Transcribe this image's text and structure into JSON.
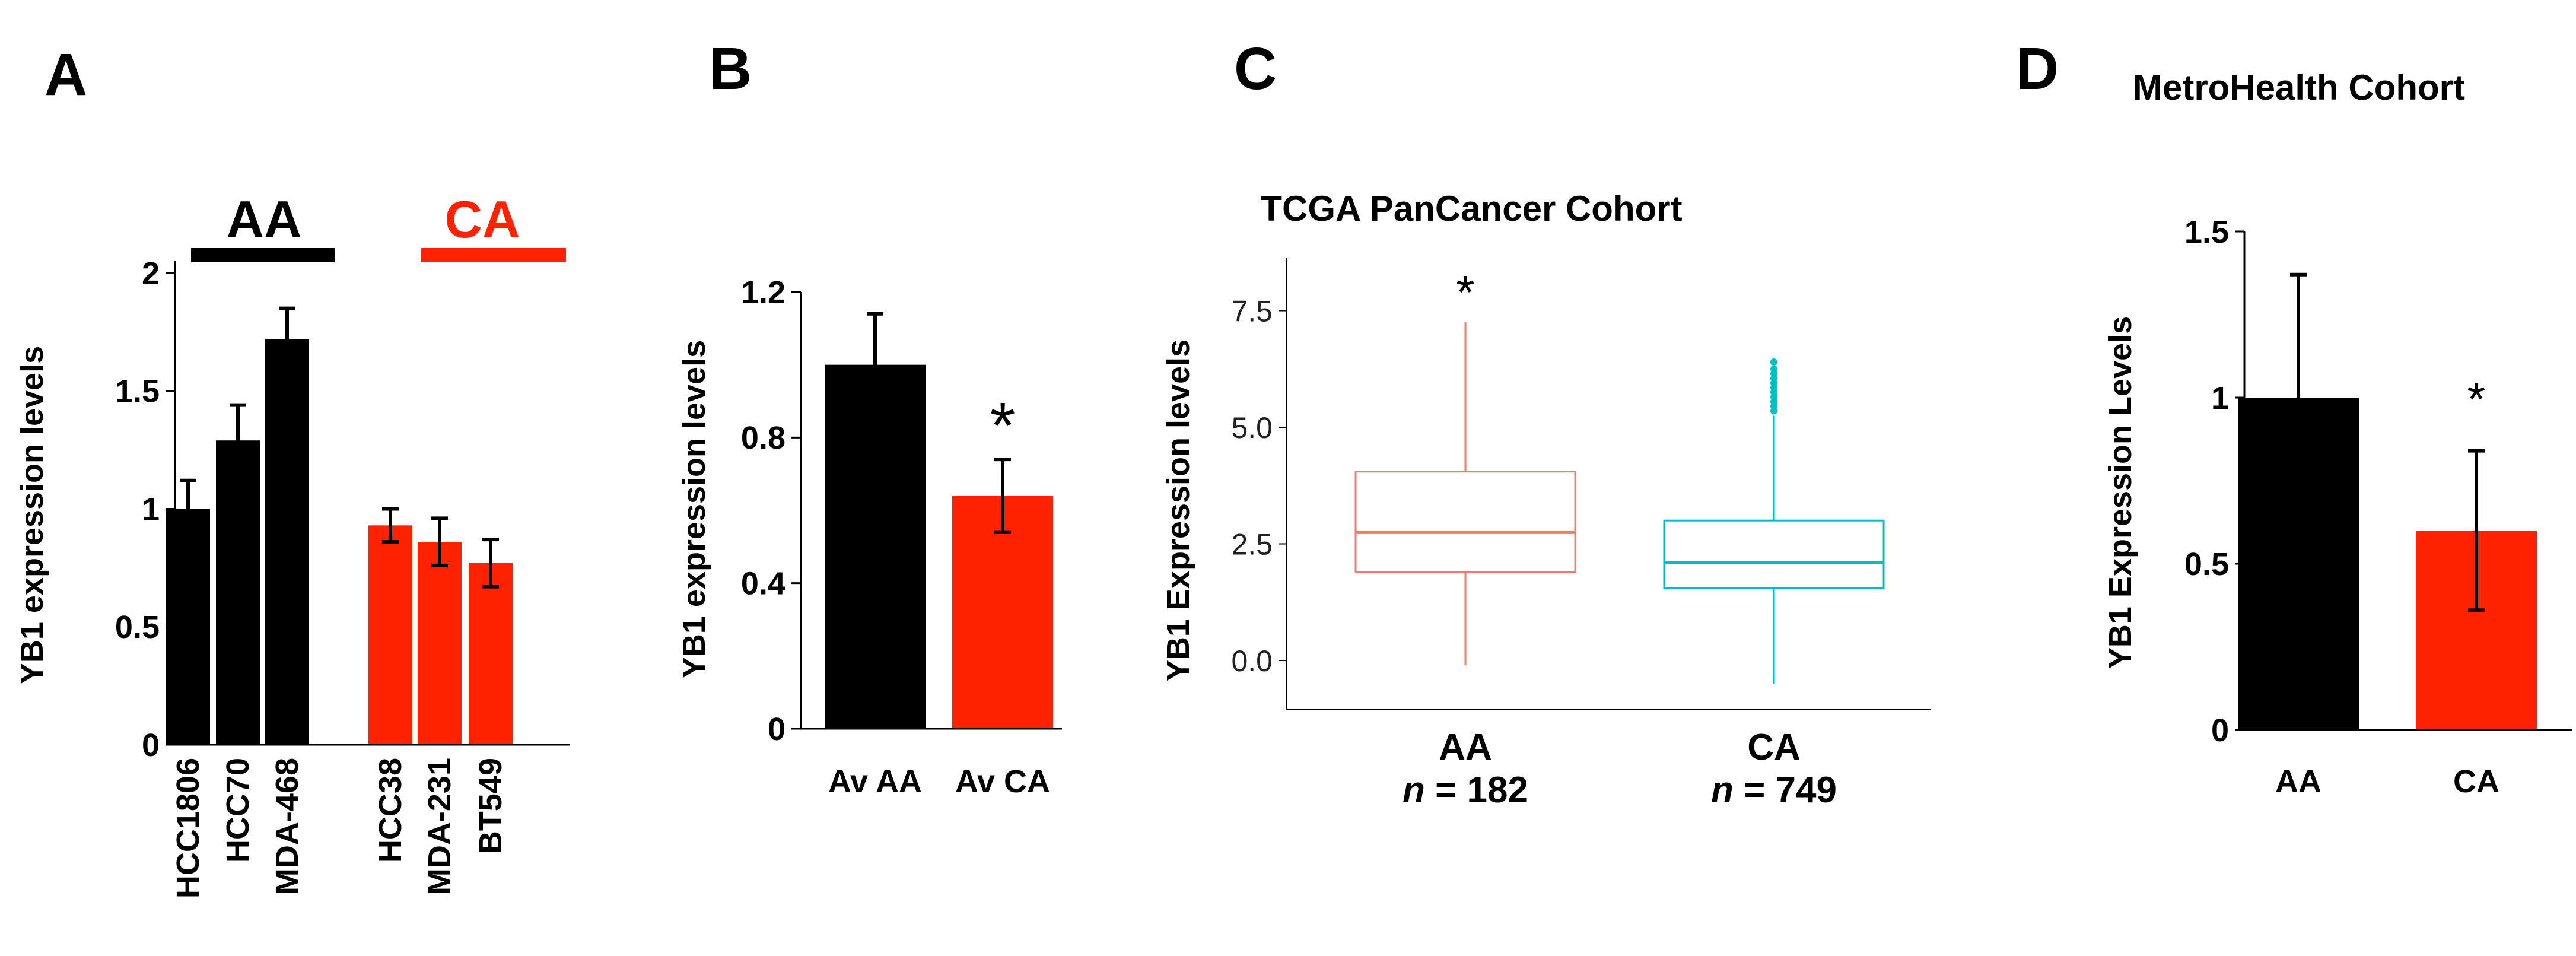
{
  "panels": {
    "a": {
      "letter": "A",
      "ylabel": "YB1 expression levels",
      "group1": "AA",
      "group2": "CA"
    },
    "b": {
      "letter": "B",
      "ylabel": "YB1 expression levels",
      "star": "*"
    },
    "c": {
      "letter": "C",
      "title": "TCGA PanCancer Cohort",
      "ylabel": "YB1 Expression levels",
      "star": "*",
      "n1_prefix": "n",
      "n1_value": "= 182",
      "n2_prefix": "n",
      "n2_value": "= 749"
    },
    "d": {
      "letter": "D",
      "title": "MetroHealth Cohort",
      "ylabel": "YB1 Expression Levels",
      "star": "*"
    }
  },
  "chart_data": [
    {
      "type": "bar",
      "panel": "A",
      "categories": [
        "HCC1806",
        "HCC70",
        "MDA-468",
        "HCC38",
        "MDA-231",
        "BT549"
      ],
      "values": [
        1.0,
        1.29,
        1.72,
        0.93,
        0.86,
        0.77
      ],
      "errors": [
        0.12,
        0.15,
        0.13,
        0.07,
        0.1,
        0.1
      ],
      "colors": [
        "#000000",
        "#000000",
        "#000000",
        "#ff2200",
        "#ff2200",
        "#ff2200"
      ],
      "groups": [
        {
          "label": "AA",
          "color": "#000000",
          "members": [
            0,
            1,
            2
          ]
        },
        {
          "label": "CA",
          "color": "#ff2200",
          "members": [
            3,
            4,
            5
          ]
        }
      ],
      "ylabel": "YB1 expression levels",
      "ylim": [
        0,
        2
      ],
      "yticks": [
        0,
        0.5,
        1,
        1.5,
        2
      ],
      "yticklabels": [
        "0",
        "0.5",
        "1",
        "1.5",
        "2"
      ]
    },
    {
      "type": "bar",
      "panel": "B",
      "categories": [
        "Av AA",
        "Av CA"
      ],
      "values": [
        1.0,
        0.64
      ],
      "errors": [
        0.14,
        0.1
      ],
      "colors": [
        "#000000",
        "#ff2200"
      ],
      "ylabel": "YB1 expression levels",
      "ylim": [
        0,
        1.2
      ],
      "yticks": [
        0,
        0.4,
        0.8,
        1.2
      ],
      "yticklabels": [
        "0",
        "0.4",
        "0.8",
        "1.2"
      ],
      "annotations": [
        {
          "category": "Av CA",
          "text": "*"
        }
      ]
    },
    {
      "type": "box",
      "panel": "C",
      "title": "TCGA PanCancer Cohort",
      "categories": [
        "AA",
        "CA"
      ],
      "boxes": [
        {
          "label": "AA",
          "n": 182,
          "min": -0.1,
          "q1": 1.9,
          "median": 2.75,
          "q3": 4.05,
          "max": 7.25,
          "outliers": [],
          "color": "#f8766d"
        },
        {
          "label": "CA",
          "n": 749,
          "min": -0.5,
          "q1": 1.55,
          "median": 2.1,
          "q3": 3.0,
          "max": 5.25,
          "outliers": [
            5.35,
            5.45,
            5.55,
            5.65,
            5.75,
            5.85,
            5.95,
            6.05,
            6.15,
            6.25,
            6.4
          ],
          "color": "#00bfc4"
        }
      ],
      "ylabel": "YB1 Expression levels",
      "ylim": [
        -0.9,
        8.6
      ],
      "yticks": [
        0,
        2.5,
        5,
        7.5
      ],
      "yticklabels": [
        "0.0",
        "2.5",
        "5.0",
        "7.5"
      ],
      "annotations": [
        {
          "category": "AA",
          "text": "*"
        }
      ]
    },
    {
      "type": "bar",
      "panel": "D",
      "title": "MetroHealth Cohort",
      "categories": [
        "AA",
        "CA"
      ],
      "values": [
        1.0,
        0.6
      ],
      "errors": [
        0.37,
        0.24
      ],
      "error_direction": [
        "up",
        "both"
      ],
      "colors": [
        "#000000",
        "#ff2200"
      ],
      "ylabel": "YB1 Expression Levels",
      "ylim": [
        0,
        1.5
      ],
      "yticks": [
        0,
        0.5,
        1,
        1.5
      ],
      "yticklabels": [
        "0",
        "0.5",
        "1",
        "1.5"
      ],
      "annotations": [
        {
          "category": "CA",
          "text": "*"
        }
      ]
    }
  ]
}
